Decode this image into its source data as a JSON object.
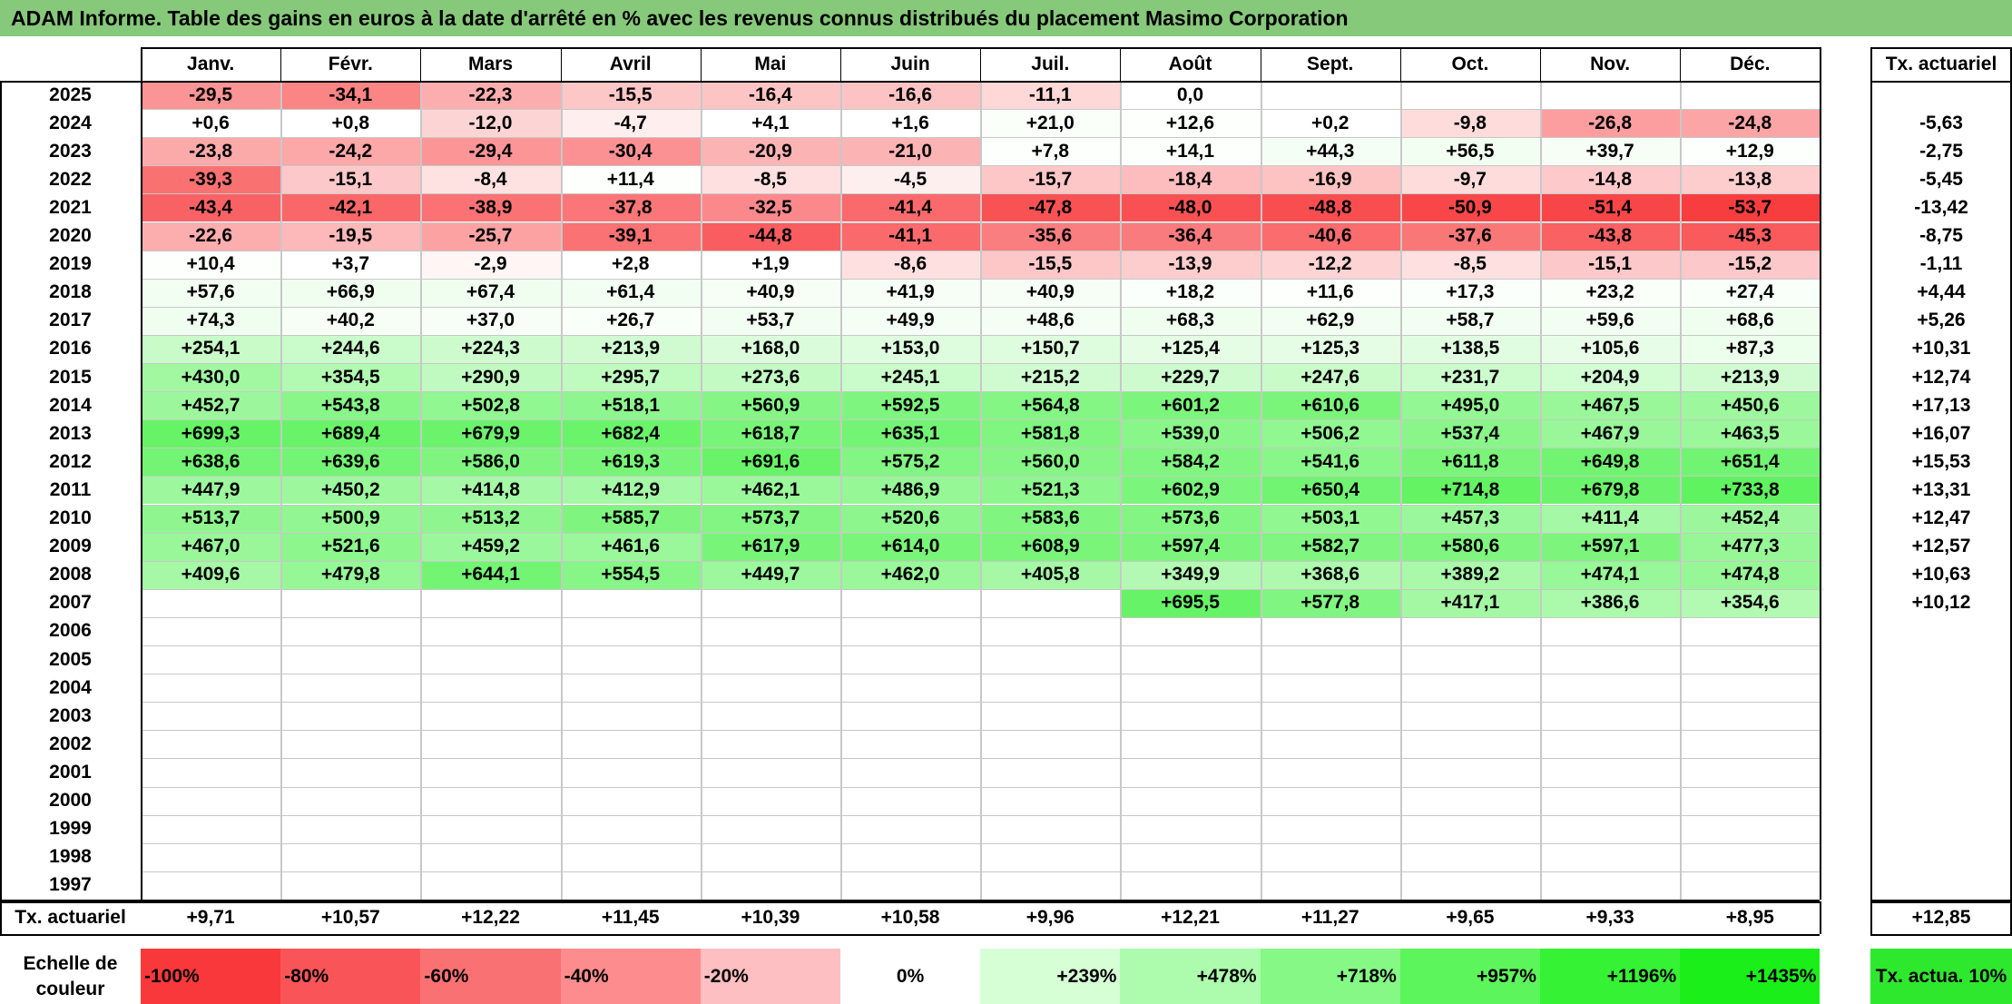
{
  "title": "ADAM Informe. Table des gains en euros à la date d'arrêté en % avec les revenus connus distribués du placement Masimo Corporation",
  "months": [
    "Janv.",
    "Févr.",
    "Mars",
    "Avril",
    "Mai",
    "Juin",
    "Juil.",
    "Août",
    "Sept.",
    "Oct.",
    "Nov.",
    "Déc."
  ],
  "rate_header": "Tx. actuariel",
  "rows": [
    {
      "year": "2025",
      "values": [
        "-29,5",
        "-34,1",
        "-22,3",
        "-15,5",
        "-16,4",
        "-16,6",
        "-11,1",
        "0,0",
        "",
        "",
        "",
        ""
      ],
      "rate": ""
    },
    {
      "year": "2024",
      "values": [
        "+0,6",
        "+0,8",
        "-12,0",
        "-4,7",
        "+4,1",
        "+1,6",
        "+21,0",
        "+12,6",
        "+0,2",
        "-9,8",
        "-26,8",
        "-24,8"
      ],
      "rate": "-5,63"
    },
    {
      "year": "2023",
      "values": [
        "-23,8",
        "-24,2",
        "-29,4",
        "-30,4",
        "-20,9",
        "-21,0",
        "+7,8",
        "+14,1",
        "+44,3",
        "+56,5",
        "+39,7",
        "+12,9"
      ],
      "rate": "-2,75"
    },
    {
      "year": "2022",
      "values": [
        "-39,3",
        "-15,1",
        "-8,4",
        "+11,4",
        "-8,5",
        "-4,5",
        "-15,7",
        "-18,4",
        "-16,9",
        "-9,7",
        "-14,8",
        "-13,8"
      ],
      "rate": "-5,45"
    },
    {
      "year": "2021",
      "values": [
        "-43,4",
        "-42,1",
        "-38,9",
        "-37,8",
        "-32,5",
        "-41,4",
        "-47,8",
        "-48,0",
        "-48,8",
        "-50,9",
        "-51,4",
        "-53,7"
      ],
      "rate": "-13,42"
    },
    {
      "year": "2020",
      "values": [
        "-22,6",
        "-19,5",
        "-25,7",
        "-39,1",
        "-44,8",
        "-41,1",
        "-35,6",
        "-36,4",
        "-40,6",
        "-37,6",
        "-43,8",
        "-45,3"
      ],
      "rate": "-8,75"
    },
    {
      "year": "2019",
      "values": [
        "+10,4",
        "+3,7",
        "-2,9",
        "+2,8",
        "+1,9",
        "-8,6",
        "-15,5",
        "-13,9",
        "-12,2",
        "-8,5",
        "-15,1",
        "-15,2"
      ],
      "rate": "-1,11"
    },
    {
      "year": "2018",
      "values": [
        "+57,6",
        "+66,9",
        "+67,4",
        "+61,4",
        "+40,9",
        "+41,9",
        "+40,9",
        "+18,2",
        "+11,6",
        "+17,3",
        "+23,2",
        "+27,4"
      ],
      "rate": "+4,44"
    },
    {
      "year": "2017",
      "values": [
        "+74,3",
        "+40,2",
        "+37,0",
        "+26,7",
        "+53,7",
        "+49,9",
        "+48,6",
        "+68,3",
        "+62,9",
        "+58,7",
        "+59,6",
        "+68,6"
      ],
      "rate": "+5,26"
    },
    {
      "year": "2016",
      "values": [
        "+254,1",
        "+244,6",
        "+224,3",
        "+213,9",
        "+168,0",
        "+153,0",
        "+150,7",
        "+125,4",
        "+125,3",
        "+138,5",
        "+105,6",
        "+87,3"
      ],
      "rate": "+10,31"
    },
    {
      "year": "2015",
      "values": [
        "+430,0",
        "+354,5",
        "+290,9",
        "+295,7",
        "+273,6",
        "+245,1",
        "+215,2",
        "+229,7",
        "+247,6",
        "+231,7",
        "+204,9",
        "+213,9"
      ],
      "rate": "+12,74"
    },
    {
      "year": "2014",
      "values": [
        "+452,7",
        "+543,8",
        "+502,8",
        "+518,1",
        "+560,9",
        "+592,5",
        "+564,8",
        "+601,2",
        "+610,6",
        "+495,0",
        "+467,5",
        "+450,6"
      ],
      "rate": "+17,13"
    },
    {
      "year": "2013",
      "values": [
        "+699,3",
        "+689,4",
        "+679,9",
        "+682,4",
        "+618,7",
        "+635,1",
        "+581,8",
        "+539,0",
        "+506,2",
        "+537,4",
        "+467,9",
        "+463,5"
      ],
      "rate": "+16,07"
    },
    {
      "year": "2012",
      "values": [
        "+638,6",
        "+639,6",
        "+586,0",
        "+619,3",
        "+691,6",
        "+575,2",
        "+560,0",
        "+584,2",
        "+541,6",
        "+611,8",
        "+649,8",
        "+651,4"
      ],
      "rate": "+15,53"
    },
    {
      "year": "2011",
      "values": [
        "+447,9",
        "+450,2",
        "+414,8",
        "+412,9",
        "+462,1",
        "+486,9",
        "+521,3",
        "+602,9",
        "+650,4",
        "+714,8",
        "+679,8",
        "+733,8"
      ],
      "rate": "+13,31"
    },
    {
      "year": "2010",
      "values": [
        "+513,7",
        "+500,9",
        "+513,2",
        "+585,7",
        "+573,7",
        "+520,6",
        "+583,6",
        "+573,6",
        "+503,1",
        "+457,3",
        "+411,4",
        "+452,4"
      ],
      "rate": "+12,47"
    },
    {
      "year": "2009",
      "values": [
        "+467,0",
        "+521,6",
        "+459,2",
        "+461,6",
        "+617,9",
        "+614,0",
        "+608,9",
        "+597,4",
        "+582,7",
        "+580,6",
        "+597,1",
        "+477,3"
      ],
      "rate": "+12,57"
    },
    {
      "year": "2008",
      "values": [
        "+409,6",
        "+479,8",
        "+644,1",
        "+554,5",
        "+449,7",
        "+462,0",
        "+405,8",
        "+349,9",
        "+368,6",
        "+389,2",
        "+474,1",
        "+474,8"
      ],
      "rate": "+10,63"
    },
    {
      "year": "2007",
      "values": [
        "",
        "",
        "",
        "",
        "",
        "",
        "",
        "+695,5",
        "+577,8",
        "+417,1",
        "+386,6",
        "+354,6"
      ],
      "rate": "+10,12"
    },
    {
      "year": "2006",
      "values": [
        "",
        "",
        "",
        "",
        "",
        "",
        "",
        "",
        "",
        "",
        "",
        ""
      ],
      "rate": ""
    },
    {
      "year": "2005",
      "values": [
        "",
        "",
        "",
        "",
        "",
        "",
        "",
        "",
        "",
        "",
        "",
        ""
      ],
      "rate": ""
    },
    {
      "year": "2004",
      "values": [
        "",
        "",
        "",
        "",
        "",
        "",
        "",
        "",
        "",
        "",
        "",
        ""
      ],
      "rate": ""
    },
    {
      "year": "2003",
      "values": [
        "",
        "",
        "",
        "",
        "",
        "",
        "",
        "",
        "",
        "",
        "",
        ""
      ],
      "rate": ""
    },
    {
      "year": "2002",
      "values": [
        "",
        "",
        "",
        "",
        "",
        "",
        "",
        "",
        "",
        "",
        "",
        ""
      ],
      "rate": ""
    },
    {
      "year": "2001",
      "values": [
        "",
        "",
        "",
        "",
        "",
        "",
        "",
        "",
        "",
        "",
        "",
        ""
      ],
      "rate": ""
    },
    {
      "year": "2000",
      "values": [
        "",
        "",
        "",
        "",
        "",
        "",
        "",
        "",
        "",
        "",
        "",
        ""
      ],
      "rate": ""
    },
    {
      "year": "1999",
      "values": [
        "",
        "",
        "",
        "",
        "",
        "",
        "",
        "",
        "",
        "",
        "",
        ""
      ],
      "rate": ""
    },
    {
      "year": "1998",
      "values": [
        "",
        "",
        "",
        "",
        "",
        "",
        "",
        "",
        "",
        "",
        "",
        ""
      ],
      "rate": ""
    },
    {
      "year": "1997",
      "values": [
        "",
        "",
        "",
        "",
        "",
        "",
        "",
        "",
        "",
        "",
        "",
        ""
      ],
      "rate": ""
    }
  ],
  "footer": {
    "label": "Tx. actuariel",
    "values": [
      "+9,71",
      "+10,57",
      "+12,22",
      "+11,45",
      "+10,39",
      "+10,58",
      "+9,96",
      "+12,21",
      "+11,27",
      "+9,65",
      "+9,33",
      "+8,95"
    ],
    "total": "+12,85"
  },
  "legend": {
    "label": "Echelle de couleur",
    "items": [
      {
        "text": "-100%",
        "color": "#f8383a",
        "align": "left"
      },
      {
        "text": "-80%",
        "color": "#f95558",
        "align": "left"
      },
      {
        "text": "-60%",
        "color": "#fa7174",
        "align": "left"
      },
      {
        "text": "-40%",
        "color": "#fc8c8e",
        "align": "left"
      },
      {
        "text": "-20%",
        "color": "#fdbfc1",
        "align": "left"
      },
      {
        "text": "0%",
        "color": "#ffffff",
        "align": "center"
      },
      {
        "text": "+239%",
        "color": "#d6ffd6",
        "align": "right"
      },
      {
        "text": "+478%",
        "color": "#adfcad",
        "align": "right"
      },
      {
        "text": "+718%",
        "color": "#85f885",
        "align": "right"
      },
      {
        "text": "+957%",
        "color": "#5cf55c",
        "align": "right"
      },
      {
        "text": "+1196%",
        "color": "#35f235",
        "align": "right"
      },
      {
        "text": "+1435%",
        "color": "#1aef1a",
        "align": "right"
      }
    ],
    "rate_label": "Tx. actua. 10%",
    "rate_color": "#2ee82e"
  }
}
